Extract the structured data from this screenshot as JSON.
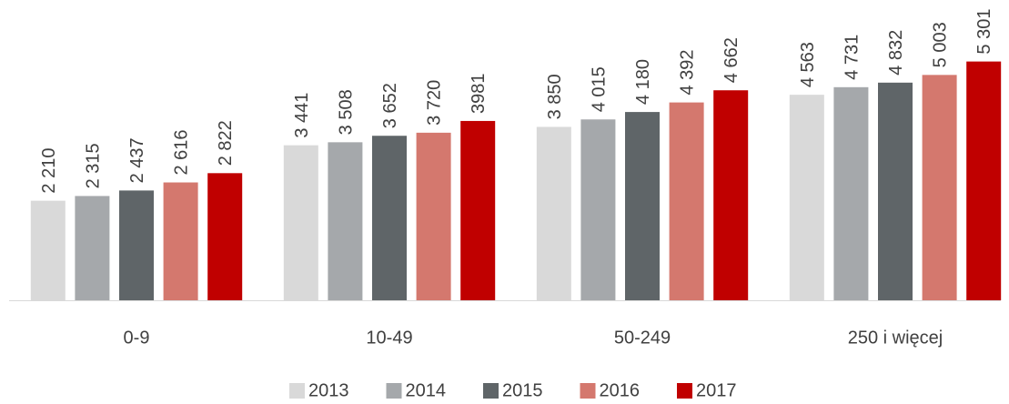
{
  "chart_data": {
    "type": "bar",
    "categories": [
      "0-9",
      "10-49",
      "50-249",
      "250 i więcej"
    ],
    "series": [
      {
        "name": "2013",
        "color": "#d9d9d9",
        "values": [
          2210,
          3441,
          3850,
          4563
        ],
        "value_labels": [
          "2 210",
          "3 441",
          "3 850",
          "4 563"
        ]
      },
      {
        "name": "2014",
        "color": "#a5a8ab",
        "values": [
          2315,
          3508,
          4015,
          4731
        ],
        "value_labels": [
          "2 315",
          "3 508",
          "4 015",
          "4 731"
        ]
      },
      {
        "name": "2015",
        "color": "#5f6568",
        "values": [
          2437,
          3652,
          4180,
          4832
        ],
        "value_labels": [
          "2 437",
          "3 652",
          "4 180",
          "4 832"
        ]
      },
      {
        "name": "2016",
        "color": "#d4786e",
        "values": [
          2616,
          3720,
          4392,
          5003
        ],
        "value_labels": [
          "2 616",
          "3 720",
          "4 392",
          "5 003"
        ]
      },
      {
        "name": "2017",
        "color": "#c00000",
        "values": [
          2822,
          3981,
          4662,
          5301
        ],
        "value_labels": [
          "2 822",
          "3981",
          "4 662",
          "5 301"
        ]
      }
    ],
    "legend": "bottom"
  }
}
